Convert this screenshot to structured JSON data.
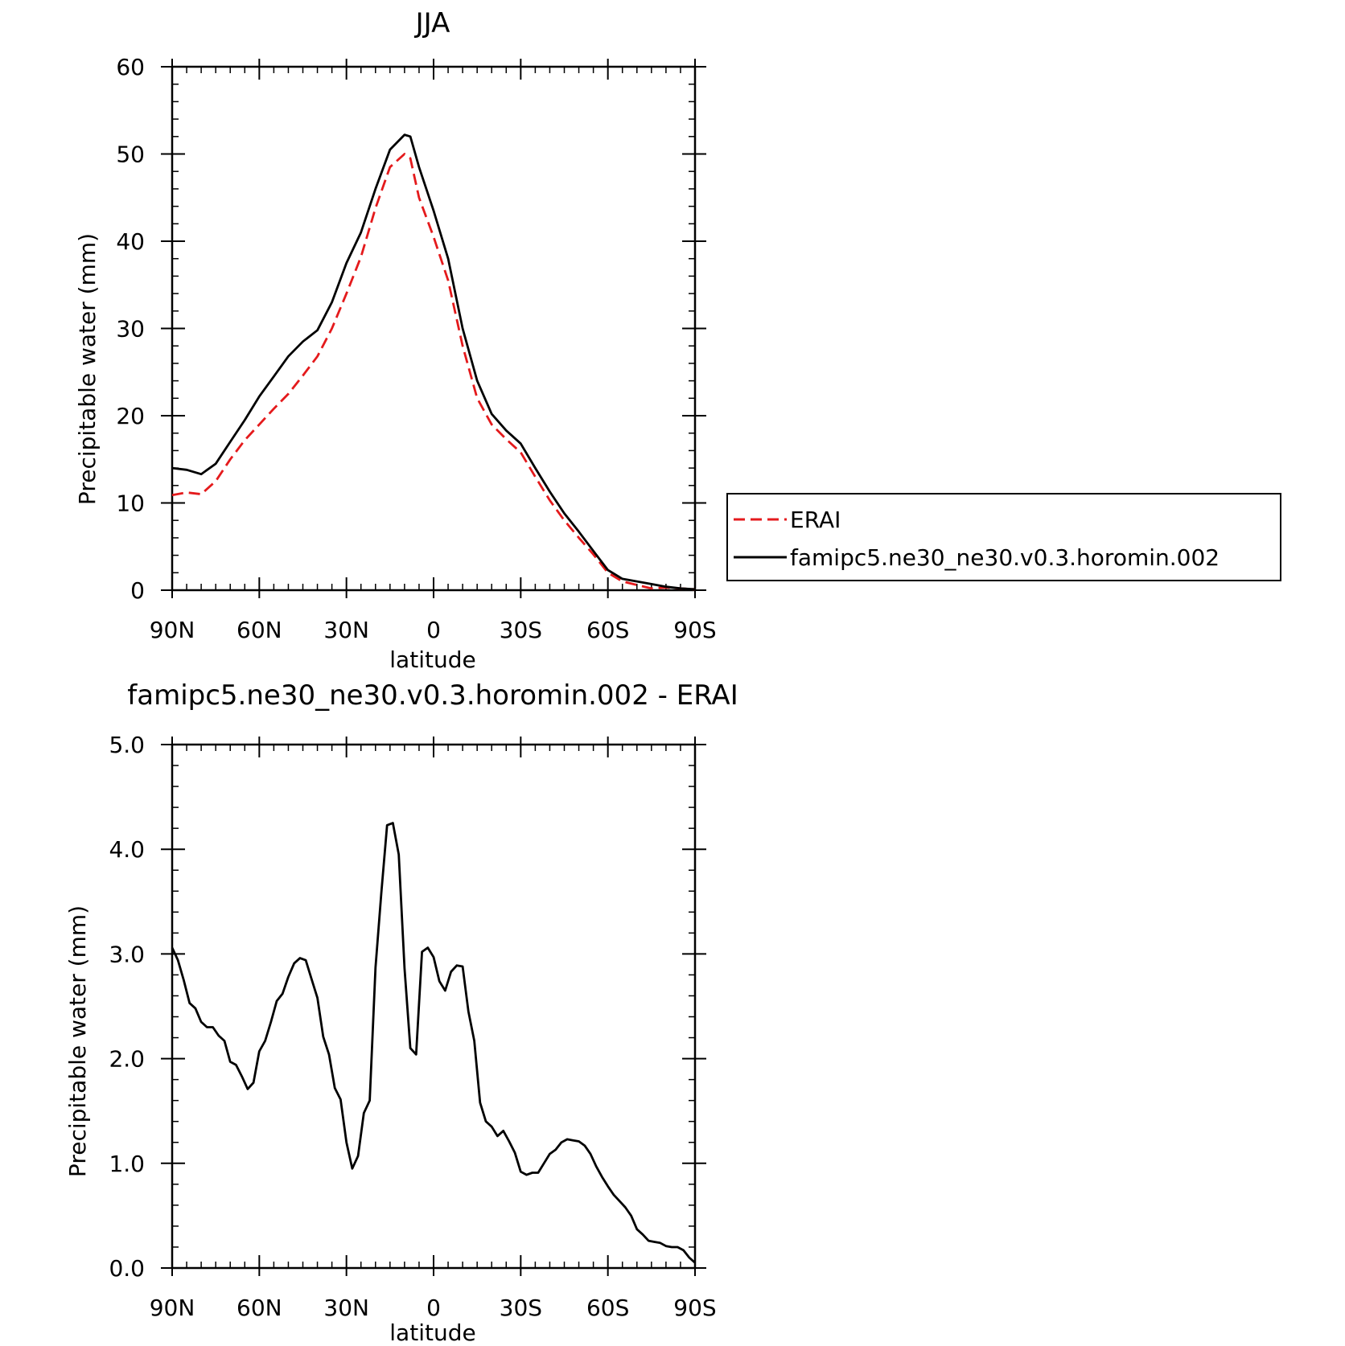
{
  "chart_data": [
    {
      "type": "line",
      "title": "JJA",
      "xlabel": "latitude",
      "ylabel": "Precipitable water (mm)",
      "xlim": [
        90,
        -90
      ],
      "ylim": [
        0,
        60
      ],
      "x_ticks": [
        {
          "value": 90,
          "label": "90N"
        },
        {
          "value": 60,
          "label": "60N"
        },
        {
          "value": 30,
          "label": "30N"
        },
        {
          "value": 0,
          "label": "0"
        },
        {
          "value": -30,
          "label": "30S"
        },
        {
          "value": -60,
          "label": "60S"
        },
        {
          "value": -90,
          "label": "90S"
        }
      ],
      "y_ticks": [
        {
          "value": 0,
          "label": "0"
        },
        {
          "value": 10,
          "label": "10"
        },
        {
          "value": 20,
          "label": "20"
        },
        {
          "value": 30,
          "label": "30"
        },
        {
          "value": 40,
          "label": "40"
        },
        {
          "value": 50,
          "label": "50"
        },
        {
          "value": 60,
          "label": "60"
        }
      ],
      "grid": false,
      "legend_position": "right",
      "series": [
        {
          "name": "ERAI",
          "color": "#e41a1c",
          "dash": true,
          "x": [
            90,
            85,
            80,
            75,
            70,
            65,
            60,
            55,
            50,
            45,
            40,
            35,
            30,
            25,
            20,
            15,
            10,
            8,
            5,
            0,
            -5,
            -10,
            -15,
            -20,
            -25,
            -30,
            -35,
            -40,
            -45,
            -50,
            -55,
            -60,
            -65,
            -70,
            -75,
            -80,
            -85,
            -90
          ],
          "y": [
            10.9,
            11.2,
            11.0,
            12.5,
            15.0,
            17.2,
            19.0,
            20.8,
            22.5,
            24.6,
            26.8,
            30.0,
            34.0,
            38.2,
            43.8,
            48.5,
            50.0,
            49.5,
            45.0,
            40.5,
            35.5,
            28.0,
            22.0,
            19.0,
            17.3,
            15.8,
            13.0,
            10.3,
            8.0,
            6.0,
            4.1,
            2.0,
            1.0,
            0.6,
            0.2,
            0.3,
            0.2,
            0.1
          ]
        },
        {
          "name": "famipc5.ne30_ne30.v0.3.horomin.002",
          "color": "#000000",
          "dash": false,
          "x": [
            90,
            85,
            80,
            75,
            70,
            65,
            60,
            55,
            50,
            45,
            40,
            35,
            30,
            25,
            20,
            15,
            10,
            8,
            5,
            0,
            -5,
            -10,
            -15,
            -20,
            -25,
            -30,
            -35,
            -40,
            -45,
            -50,
            -55,
            -60,
            -65,
            -70,
            -75,
            -80,
            -85,
            -90
          ],
          "y": [
            14.0,
            13.8,
            13.3,
            14.5,
            17.0,
            19.5,
            22.2,
            24.5,
            26.8,
            28.5,
            29.8,
            33.0,
            37.5,
            41.0,
            46.0,
            50.5,
            52.2,
            52.0,
            48.5,
            43.5,
            38.0,
            30.0,
            24.0,
            20.2,
            18.3,
            16.8,
            14.0,
            11.3,
            8.8,
            6.7,
            4.5,
            2.3,
            1.3,
            1.0,
            0.7,
            0.4,
            0.2,
            0.1
          ]
        }
      ]
    },
    {
      "type": "line",
      "title": "famipc5.ne30_ne30.v0.3.horomin.002 - ERAI",
      "xlabel": "latitude",
      "ylabel": "Precipitable water (mm)",
      "xlim": [
        90,
        -90
      ],
      "ylim": [
        0,
        5
      ],
      "x_ticks": [
        {
          "value": 90,
          "label": "90N"
        },
        {
          "value": 60,
          "label": "60N"
        },
        {
          "value": 30,
          "label": "30N"
        },
        {
          "value": 0,
          "label": "0"
        },
        {
          "value": -30,
          "label": "30S"
        },
        {
          "value": -60,
          "label": "60S"
        },
        {
          "value": -90,
          "label": "90S"
        }
      ],
      "y_ticks": [
        {
          "value": 0,
          "label": "0.0"
        },
        {
          "value": 1,
          "label": "1.0"
        },
        {
          "value": 2,
          "label": "2.0"
        },
        {
          "value": 3,
          "label": "3.0"
        },
        {
          "value": 4,
          "label": "4.0"
        },
        {
          "value": 5,
          "label": "5.0"
        }
      ],
      "grid": false,
      "series": [
        {
          "color": "#000000",
          "dash": false,
          "x": [
            90,
            88,
            86,
            84,
            82,
            80,
            78,
            76,
            74,
            72,
            70,
            68,
            66,
            64,
            62,
            60,
            58,
            56,
            54,
            52,
            50,
            48,
            46,
            44,
            42,
            40,
            38,
            36,
            34,
            32,
            30,
            28,
            26,
            24,
            22,
            20,
            18,
            16,
            14,
            12,
            10,
            8,
            6,
            4,
            2,
            0,
            -2,
            -4,
            -6,
            -8,
            -10,
            -12,
            -14,
            -16,
            -18,
            -20,
            -22,
            -24,
            -26,
            -28,
            -30,
            -32,
            -34,
            -36,
            -38,
            -40,
            -42,
            -44,
            -46,
            -48,
            -50,
            -52,
            -54,
            -56,
            -58,
            -60,
            -62,
            -64,
            -66,
            -68,
            -70,
            -72,
            -74,
            -76,
            -78,
            -80,
            -82,
            -84,
            -86,
            -88,
            -90
          ],
          "y": [
            3.06,
            2.94,
            2.75,
            2.53,
            2.48,
            2.35,
            2.3,
            2.3,
            2.22,
            2.17,
            1.97,
            1.94,
            1.83,
            1.71,
            1.77,
            2.07,
            2.17,
            2.35,
            2.55,
            2.62,
            2.78,
            2.91,
            2.96,
            2.94,
            2.76,
            2.58,
            2.21,
            2.04,
            1.72,
            1.61,
            1.2,
            0.95,
            1.07,
            1.48,
            1.6,
            2.87,
            3.58,
            4.23,
            4.25,
            3.95,
            2.86,
            2.1,
            2.04,
            3.02,
            3.06,
            2.97,
            2.74,
            2.65,
            2.83,
            2.89,
            2.88,
            2.45,
            2.17,
            1.58,
            1.4,
            1.35,
            1.26,
            1.31,
            1.21,
            1.1,
            0.92,
            0.89,
            0.91,
            0.91,
            1.0,
            1.09,
            1.13,
            1.2,
            1.23,
            1.22,
            1.21,
            1.17,
            1.09,
            0.97,
            0.87,
            0.78,
            0.7,
            0.64,
            0.58,
            0.5,
            0.37,
            0.32,
            0.26,
            0.25,
            0.24,
            0.21,
            0.2,
            0.2,
            0.17,
            0.1,
            0.05
          ]
        }
      ]
    }
  ]
}
